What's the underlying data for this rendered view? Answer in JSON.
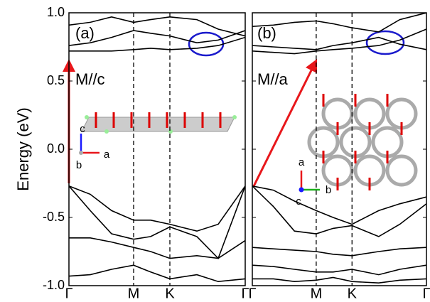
{
  "chart_data": [
    {
      "type": "line",
      "panel_label": "(a)",
      "annotation": "M//c",
      "ylabel": "Energy (eV)",
      "axis_labels": [
        "c",
        "a",
        "b"
      ],
      "x": [
        0,
        0.3,
        0.6,
        0.91,
        1.15,
        1.42,
        1.8,
        2.1,
        2.48
      ],
      "xlim": [
        0,
        2.48
      ],
      "xticks": [
        {
          "value": 0,
          "label": "Γ"
        },
        {
          "value": 0.91,
          "label": "M"
        },
        {
          "value": 1.42,
          "label": "K"
        },
        {
          "value": 2.48,
          "label": "Γ"
        }
      ],
      "ylim": [
        -1.0,
        1.0
      ],
      "yticks": [
        {
          "value": -1.0,
          "label": "-1.0"
        },
        {
          "value": -0.5,
          "label": "-0.5"
        },
        {
          "value": 0.0,
          "label": "0.0"
        },
        {
          "value": 0.5,
          "label": "0.5"
        },
        {
          "value": 1.0,
          "label": "1.0"
        }
      ],
      "series": [
        {
          "color": "#000000",
          "values": [
            0.72,
            0.72,
            0.72,
            0.73,
            0.74,
            0.73,
            0.74,
            0.76,
            0.82
          ]
        },
        {
          "color": "#000000",
          "values": [
            0.76,
            0.78,
            0.82,
            0.87,
            0.85,
            0.83,
            0.78,
            0.8,
            0.87
          ]
        },
        {
          "color": "#000000",
          "values": [
            0.91,
            0.93,
            0.97,
            0.93,
            0.95,
            0.97,
            0.95,
            0.88,
            0.83
          ]
        },
        {
          "color": "#000000",
          "values": [
            -0.27,
            -0.33,
            -0.45,
            -0.52,
            -0.52,
            -0.55,
            -0.6,
            -0.55,
            -0.27
          ]
        },
        {
          "color": "#000000",
          "values": [
            -0.27,
            -0.45,
            -0.62,
            -0.66,
            -0.64,
            -0.57,
            -0.64,
            -0.8,
            -0.27
          ]
        },
        {
          "color": "#000000",
          "values": [
            -0.65,
            -0.65,
            -0.68,
            -0.72,
            -0.75,
            -0.8,
            -0.78,
            -0.8,
            -0.67
          ]
        },
        {
          "color": "#000000",
          "values": [
            -0.93,
            -0.92,
            -0.88,
            -0.85,
            -0.9,
            -0.95,
            -0.92,
            -0.97,
            -0.95
          ]
        }
      ]
    },
    {
      "type": "line",
      "panel_label": "(b)",
      "annotation": "M//a",
      "axis_labels": [
        "a",
        "b",
        "c"
      ],
      "x": [
        0,
        0.3,
        0.6,
        0.91,
        1.15,
        1.42,
        1.8,
        2.1,
        2.48
      ],
      "xlim": [
        0,
        2.48
      ],
      "xticks": [
        {
          "value": 0,
          "label": "Γ"
        },
        {
          "value": 0.91,
          "label": "M"
        },
        {
          "value": 1.42,
          "label": "K"
        },
        {
          "value": 2.48,
          "label": "Γ"
        }
      ],
      "ylim": [
        -1.0,
        1.0
      ],
      "series": [
        {
          "color": "#000000",
          "values": [
            0.72,
            0.71,
            0.7,
            0.72,
            0.73,
            0.74,
            0.76,
            0.8,
            0.88
          ]
        },
        {
          "color": "#000000",
          "values": [
            0.76,
            0.75,
            0.74,
            0.73,
            0.76,
            0.78,
            0.82,
            0.77,
            0.73
          ]
        },
        {
          "color": "#000000",
          "values": [
            0.9,
            0.91,
            0.93,
            0.94,
            0.92,
            0.89,
            0.86,
            0.95,
            1.0
          ]
        },
        {
          "color": "#000000",
          "values": [
            -0.27,
            -0.3,
            -0.38,
            -0.45,
            -0.5,
            -0.55,
            -0.45,
            -0.4,
            -0.35
          ]
        },
        {
          "color": "#000000",
          "values": [
            -0.27,
            -0.42,
            -0.6,
            -0.62,
            -0.58,
            -0.56,
            -0.64,
            -0.55,
            -0.4
          ]
        },
        {
          "color": "#000000",
          "values": [
            -0.72,
            -0.73,
            -0.74,
            -0.75,
            -0.77,
            -0.78,
            -0.75,
            -0.73,
            -0.72
          ]
        },
        {
          "color": "#000000",
          "values": [
            -0.85,
            -0.86,
            -0.88,
            -0.9,
            -0.9,
            -0.88,
            -0.92,
            -0.88,
            -0.85
          ]
        },
        {
          "color": "#000000",
          "values": [
            -0.95,
            -0.95,
            -0.97,
            -0.96,
            -0.94,
            -0.97,
            -0.98,
            -0.96,
            -0.95
          ]
        }
      ]
    }
  ]
}
